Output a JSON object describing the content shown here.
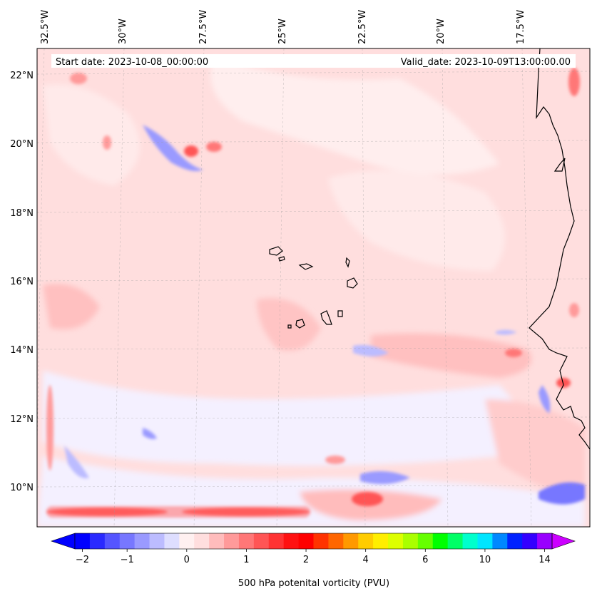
{
  "header": {
    "start_date": "Start date: 2023-10-08_00:00:00",
    "valid_date": "Valid_date: 2023-10-09T13:00:00.00"
  },
  "axes": {
    "lon_labels": [
      "32.5°W",
      "30°W",
      "27.5°W",
      "25°W",
      "22.5°W",
      "20°W",
      "17.5°W"
    ],
    "lat_labels": [
      "22°N",
      "20°N",
      "18°N",
      "16°N",
      "14°N",
      "12°N",
      "10°N"
    ]
  },
  "colorbar": {
    "label": "500 hPa potenital vorticity (PVU)",
    "tick_labels": [
      "−2",
      "−1",
      "0",
      "1",
      "2",
      "4",
      "6",
      "10",
      "14"
    ],
    "colors": [
      "#0000ff",
      "#2a2aff",
      "#5555ff",
      "#7777ff",
      "#9a9aff",
      "#bcbcff",
      "#dedeff",
      "#fff0f0",
      "#ffdede",
      "#ffbcbc",
      "#ff9a9a",
      "#ff7777",
      "#ff5555",
      "#ff3333",
      "#ff1111",
      "#ff0000",
      "#ff3300",
      "#ff6600",
      "#ff9900",
      "#ffcc00",
      "#ffee00",
      "#ddff00",
      "#aaff00",
      "#66ff00",
      "#00ff00",
      "#00ff66",
      "#00ffcc",
      "#00e5ff",
      "#0088ff",
      "#0022ff",
      "#3300ff",
      "#9900ff"
    ],
    "under_color": "#0000ff",
    "over_color": "#cc00ff"
  },
  "map": {
    "background_color": "#ffdcdc",
    "islands": "Cape Verde",
    "coastline": "West Africa"
  }
}
